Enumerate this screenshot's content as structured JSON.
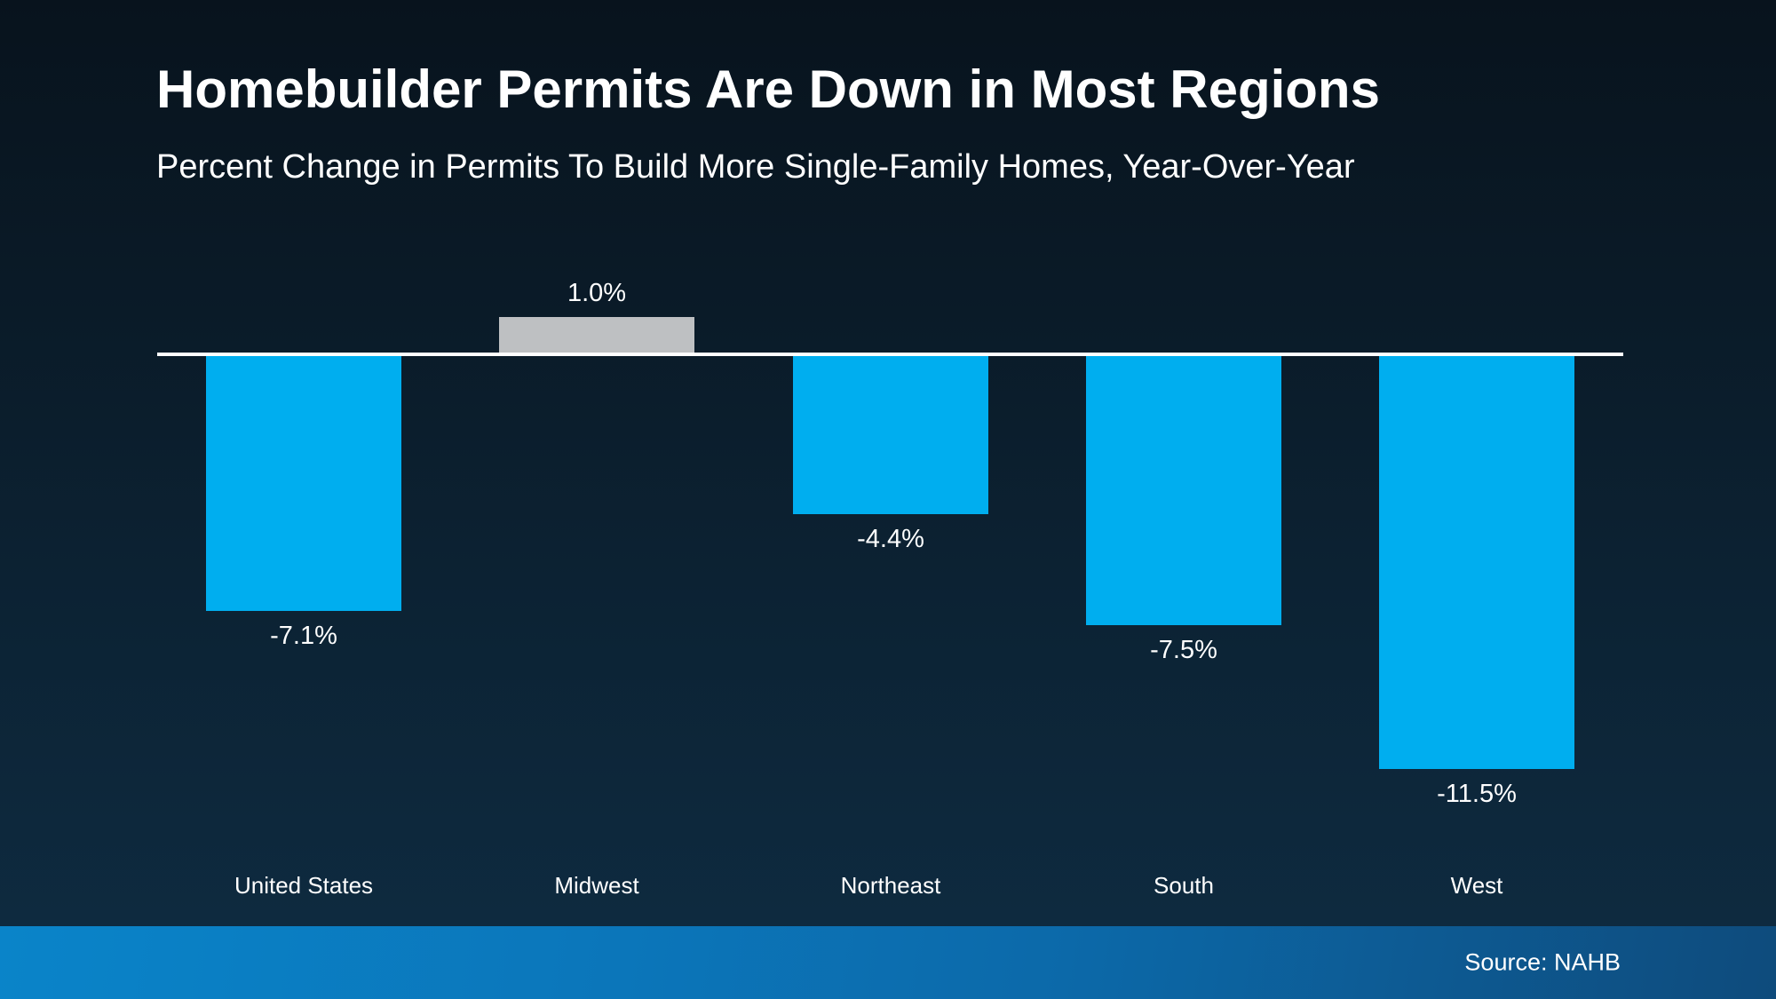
{
  "slide": {
    "title": "Homebuilder Permits Are Down in Most Regions",
    "subtitle": "Percent Change in Permits To Build More Single-Family Homes, Year-Over-Year",
    "source": "Source: NAHB"
  },
  "colors": {
    "background_top": "#08131d",
    "background_bottom": "#0e2c42",
    "bar_negative": "#00aeef",
    "bar_positive": "#bec0c2",
    "baseline": "#ffffff",
    "text": "#ffffff",
    "footer_gradient_left": "#0a84c9",
    "footer_gradient_right": "#0e4b7c"
  },
  "chart_data": {
    "type": "bar",
    "title": "Homebuilder Permits Are Down in Most Regions",
    "subtitle": "Percent Change in Permits To Build More Single-Family Homes, Year-Over-Year",
    "categories": [
      "United States",
      "Midwest",
      "Northeast",
      "South",
      "West"
    ],
    "values": [
      -7.1,
      1.0,
      -4.4,
      -7.5,
      -11.5
    ],
    "value_labels": [
      "-7.1%",
      "1.0%",
      "-4.4%",
      "-7.5%",
      "-11.5%"
    ],
    "bar_colors": [
      "#00aeef",
      "#bec0c2",
      "#00aeef",
      "#00aeef",
      "#00aeef"
    ],
    "unit": "percent",
    "baseline_value": 0,
    "ylim": [
      -12,
      2
    ],
    "grid": false,
    "legend": false,
    "xlabel": "",
    "ylabel": "",
    "source": "Source: NAHB"
  }
}
